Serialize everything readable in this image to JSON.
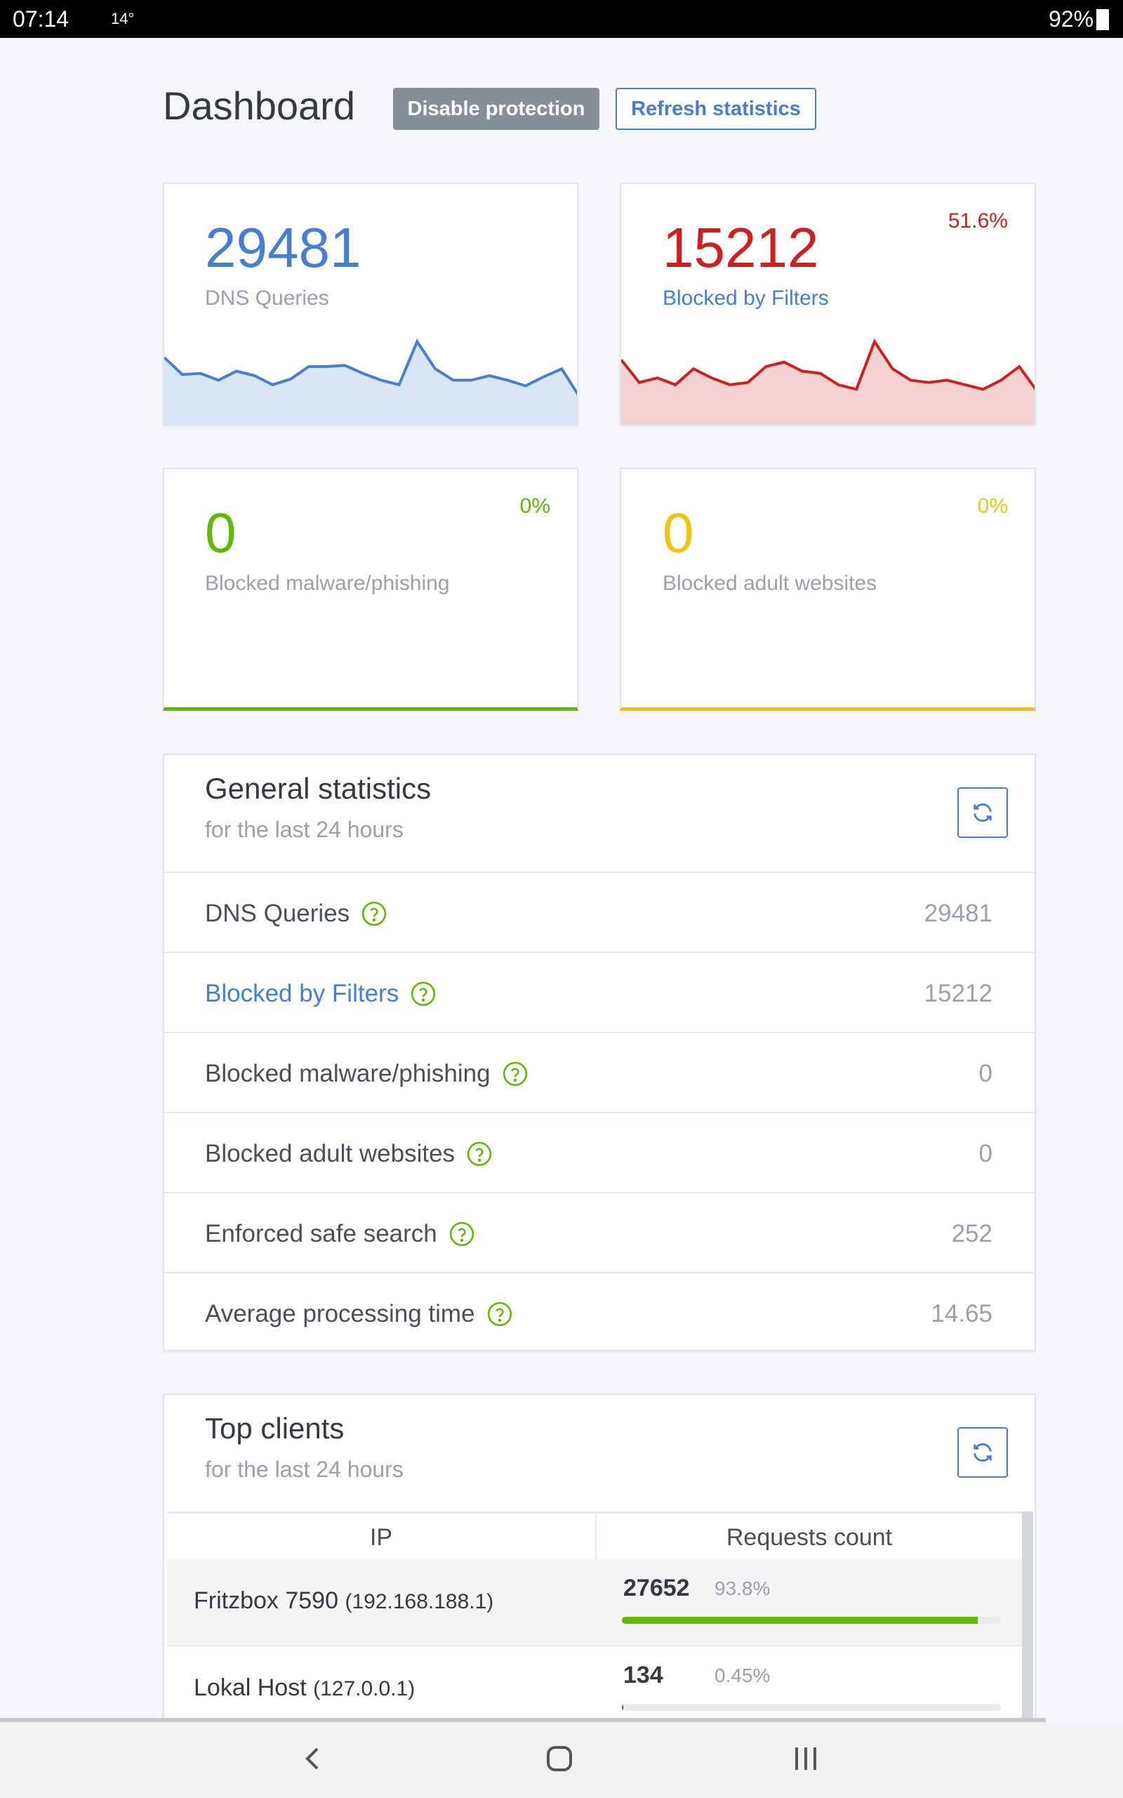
{
  "status_bar": {
    "time": "07:14",
    "temperature": "14°",
    "battery": "92%"
  },
  "header": {
    "title": "Dashboard",
    "buttons": [
      "Disable protection",
      "Refresh statistics"
    ]
  },
  "cards": [
    {
      "value": "29481",
      "label": "DNS Queries",
      "sparkline": [
        60,
        45,
        46,
        40,
        48,
        44,
        36,
        41,
        52,
        52,
        53,
        46,
        40,
        36,
        74,
        50,
        40,
        40,
        44,
        40,
        35,
        43,
        50,
        25
      ]
    },
    {
      "value": "15212",
      "label": "Blocked by Filters",
      "percent": "51.6%",
      "sparkline": [
        58,
        38,
        42,
        36,
        50,
        42,
        36,
        38,
        52,
        56,
        48,
        46,
        36,
        32,
        74,
        50,
        40,
        38,
        40,
        36,
        32,
        40,
        52,
        30
      ]
    },
    {
      "value": "0",
      "label": "Blocked malware/phishing",
      "percent": "0%"
    },
    {
      "value": "0",
      "label": "Blocked adult websites",
      "percent": "0%"
    }
  ],
  "general_statistics": {
    "title": "General statistics",
    "subtitle": "for the last 24 hours",
    "rows": [
      [
        "DNS Queries",
        "29481"
      ],
      [
        "Blocked by Filters",
        "15212"
      ],
      [
        "Blocked malware/phishing",
        "0"
      ],
      [
        "Blocked adult websites",
        "0"
      ],
      [
        "Enforced safe search",
        "252"
      ],
      [
        "Average processing time",
        "14.65"
      ]
    ]
  },
  "top_clients": {
    "title": "Top clients",
    "subtitle": "for the last 24 hours",
    "columns": [
      "IP",
      "Requests count"
    ],
    "rows": [
      {
        "name": "Fritzbox 7590",
        "ip": "(192.168.188.1)",
        "count": "27652",
        "percent": {
          "value": 93.8,
          "label": "93.8%"
        }
      },
      {
        "name": "Lokal Host",
        "ip": "(127.0.0.1)",
        "count": "134",
        "percent": {
          "value": 0.45,
          "label": "0.45%"
        }
      }
    ]
  }
}
